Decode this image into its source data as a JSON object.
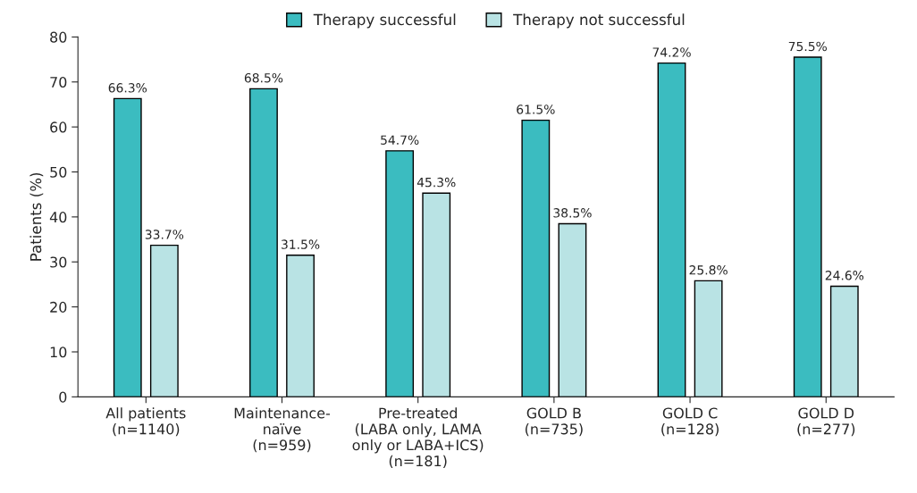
{
  "chart_data": {
    "type": "bar",
    "ylabel": "Patients (%)",
    "categories": [
      "All patients\n(n=1140)",
      "Maintenance-\nnaïve\n(n=959)",
      "Pre-treated\n(LABA only, LAMA\nonly or LABA+ICS)\n(n=181)",
      "GOLD B\n(n=735)",
      "GOLD C\n(n=128)",
      "GOLD D\n(n=277)"
    ],
    "series": [
      {
        "name": "Therapy successful",
        "color": "#3bbcc0",
        "values": [
          66.3,
          68.5,
          54.7,
          61.5,
          74.2,
          75.5
        ],
        "value_labels": [
          "66.3%",
          "68.5%",
          "54.7%",
          "61.5%",
          "74.2%",
          "75.5%"
        ]
      },
      {
        "name": "Therapy not successful",
        "color": "#b9e3e4",
        "values": [
          33.7,
          31.5,
          45.3,
          38.5,
          25.8,
          24.6
        ],
        "value_labels": [
          "33.7%",
          "31.5%",
          "45.3%",
          "38.5%",
          "25.8%",
          "24.6%"
        ]
      }
    ],
    "ylim": [
      0,
      80
    ],
    "yticks": [
      0,
      10,
      20,
      30,
      40,
      50,
      60,
      70,
      80
    ],
    "legend": "top",
    "grid": false
  }
}
